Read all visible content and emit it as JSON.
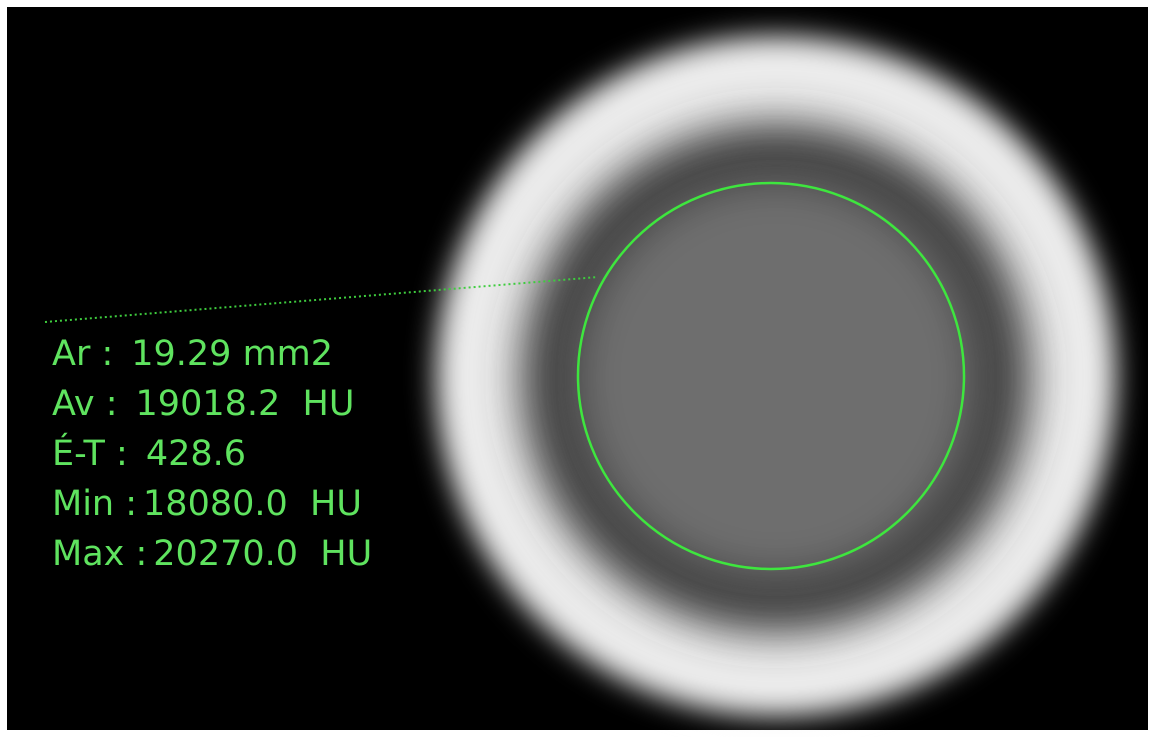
{
  "measurements": [
    {
      "label": "Ar :",
      "value": "19.29 mm2"
    },
    {
      "label": "Av :",
      "value": "19018.2  HU"
    },
    {
      "label": "É-T :",
      "value": "428.6"
    },
    {
      "label": "Min :",
      "value": "18080.0  HU"
    },
    {
      "label": "Max :",
      "value": "20270.0  HU"
    }
  ]
}
